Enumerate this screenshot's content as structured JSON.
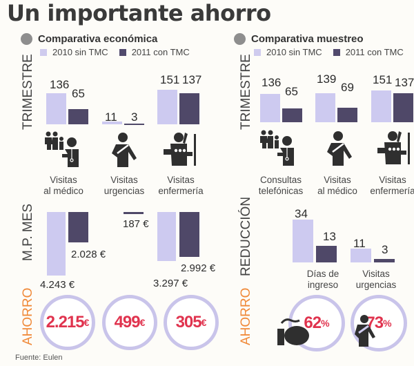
{
  "title": "Un importante ahorro",
  "source": "Fuente: Eulen",
  "legend": {
    "light": "2010 sin TMC",
    "dark": "2011 con TMC"
  },
  "colors": {
    "light": "#cdcaf0",
    "dark": "#4f4868",
    "accent": "#e0334e",
    "label_orange": "#f08a3a",
    "ring": "#c9c4ea"
  },
  "chart_data": [
    {
      "type": "bar",
      "title": "Comparativa económica — Trimestre",
      "ylabel": "TRIMESTRE",
      "categories": [
        "Visitas al médico",
        "Visitas urgencias",
        "Visitas enfermería"
      ],
      "series": [
        {
          "name": "2010 sin TMC",
          "values": [
            136,
            11,
            151
          ]
        },
        {
          "name": "2011 con TMC",
          "values": [
            65,
            3,
            137
          ]
        }
      ]
    },
    {
      "type": "bar",
      "title": "Comparativa económica — M.P. mes",
      "ylabel": "M.P. MES",
      "categories": [
        "Visitas al médico",
        "Visitas urgencias",
        "Visitas enfermería"
      ],
      "series": [
        {
          "name": "2010 sin TMC",
          "values": [
            4243,
            null,
            3297
          ]
        },
        {
          "name": "2011 con TMC",
          "values": [
            2028,
            187,
            2992
          ]
        }
      ],
      "value_labels": [
        [
          "4.243 €",
          "",
          "3.297 €"
        ],
        [
          "2.028 €",
          "187 €",
          "2.992 €"
        ]
      ]
    },
    {
      "type": "table",
      "title": "Comparativa económica — Ahorro",
      "label": "AHORRO",
      "values": [
        "2.215€",
        "499€",
        "305€"
      ]
    },
    {
      "type": "bar",
      "title": "Comparativa muestreo — Trimestre",
      "ylabel": "TRIMESTRE",
      "categories": [
        "Consultas telefónicas",
        "Visitas al médico",
        "Visitas enfermería"
      ],
      "series": [
        {
          "name": "2010 sin TMC",
          "values": [
            136,
            139,
            151
          ]
        },
        {
          "name": "2011 con TMC",
          "values": [
            65,
            69,
            137
          ]
        }
      ]
    },
    {
      "type": "bar",
      "title": "Comparativa muestreo — Reducción",
      "ylabel": "REDUCCIÓN",
      "categories": [
        "Días de ingreso",
        "Visitas urgencias"
      ],
      "series": [
        {
          "name": "2010 sin TMC",
          "values": [
            34,
            11
          ]
        },
        {
          "name": "2011 con TMC",
          "values": [
            13,
            3
          ]
        }
      ]
    },
    {
      "type": "table",
      "title": "Comparativa muestreo — Ahorro",
      "label": "AHORRO",
      "values": [
        "62%",
        "73%"
      ]
    }
  ],
  "left": {
    "heading": "Comparativa económica",
    "trimestre_label": "TRIMESTRE",
    "mpmes_label": "M.P. MES",
    "ahorro_label": "AHORRO",
    "cats": [
      {
        "l1": "Visitas",
        "l2": "al médico"
      },
      {
        "l1": "Visitas",
        "l2": "urgencias"
      },
      {
        "l1": "Visitas",
        "l2": "enfermería"
      }
    ],
    "trim_labels": [
      [
        "136",
        "65"
      ],
      [
        "11",
        "3"
      ],
      [
        "151",
        "137"
      ]
    ],
    "mp_labels": {
      "a1": "4.243 €",
      "a2": "2.028 €",
      "b2": "187 €",
      "c1": "3.297 €",
      "c2": "2.992 €"
    },
    "savings": [
      {
        "num": "2.215",
        "unit": "€"
      },
      {
        "num": "499",
        "unit": "€"
      },
      {
        "num": "305",
        "unit": "€"
      }
    ]
  },
  "right": {
    "heading": "Comparativa muestreo",
    "trimestre_label": "TRIMESTRE",
    "reduccion_label": "REDUCCIÓN",
    "ahorro_label": "AHORRO",
    "cats": [
      {
        "l1": "Consultas",
        "l2": "telefónicas"
      },
      {
        "l1": "Visitas",
        "l2": "al médico"
      },
      {
        "l1": "Visitas",
        "l2": "enfermería"
      }
    ],
    "trim_labels": [
      [
        "136",
        "65"
      ],
      [
        "139",
        "69"
      ],
      [
        "151",
        "137"
      ]
    ],
    "red_cats": [
      {
        "l1": "Días de",
        "l2": "ingreso"
      },
      {
        "l1": "Visitas",
        "l2": "urgencias"
      }
    ],
    "red_labels": [
      [
        "34",
        "13"
      ],
      [
        "11",
        "3"
      ]
    ],
    "savings": [
      {
        "num": "62",
        "unit": "%"
      },
      {
        "num": "73",
        "unit": "%"
      }
    ]
  }
}
